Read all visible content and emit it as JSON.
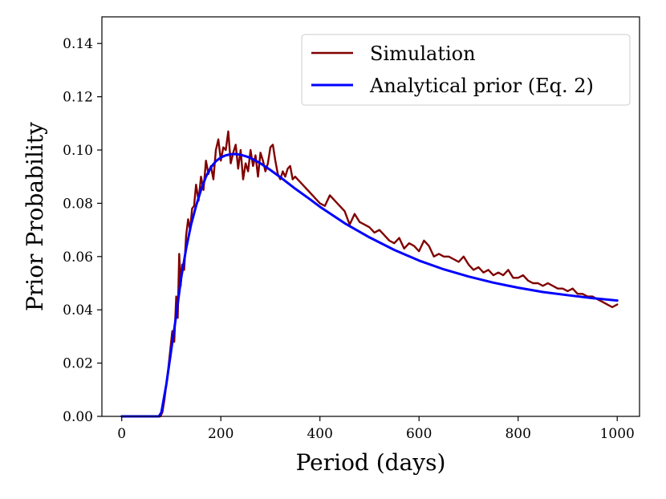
{
  "chart_data": {
    "type": "line",
    "title": "",
    "xlabel": "Period (days)",
    "ylabel": "Prior Probability",
    "xlim": [
      -40,
      1045
    ],
    "ylim": [
      0,
      0.15
    ],
    "xticks": [
      0,
      200,
      400,
      600,
      800,
      1000
    ],
    "xtick_labels": [
      "0",
      "200",
      "400",
      "600",
      "800",
      "1000"
    ],
    "yticks": [
      0.0,
      0.02,
      0.04,
      0.06,
      0.08,
      0.1,
      0.12,
      0.14
    ],
    "ytick_labels": [
      "0.00",
      "0.02",
      "0.04",
      "0.06",
      "0.08",
      "0.10",
      "0.12",
      "0.14"
    ],
    "grid": false,
    "legend_position": "top-right",
    "series": [
      {
        "name": "Simulation",
        "color": "#800000",
        "x": [
          0,
          40,
          78,
          82,
          86,
          90,
          94,
          98,
          102,
          106,
          110,
          113,
          116,
          119,
          122,
          126,
          130,
          134,
          138,
          142,
          146,
          150,
          155,
          160,
          165,
          170,
          175,
          180,
          185,
          190,
          195,
          200,
          205,
          210,
          215,
          220,
          225,
          230,
          235,
          240,
          245,
          250,
          255,
          260,
          265,
          270,
          275,
          280,
          285,
          290,
          295,
          300,
          305,
          310,
          315,
          320,
          325,
          330,
          335,
          340,
          345,
          350,
          360,
          370,
          380,
          390,
          400,
          410,
          420,
          430,
          440,
          450,
          460,
          470,
          480,
          490,
          500,
          510,
          520,
          530,
          540,
          550,
          560,
          570,
          580,
          590,
          600,
          610,
          620,
          630,
          640,
          650,
          660,
          670,
          680,
          690,
          700,
          710,
          720,
          730,
          740,
          750,
          760,
          770,
          780,
          790,
          800,
          810,
          820,
          830,
          840,
          850,
          860,
          870,
          880,
          890,
          900,
          910,
          920,
          930,
          940,
          950,
          960,
          970,
          980,
          990,
          1000
        ],
        "y": [
          0,
          0,
          0,
          0.0015,
          0.006,
          0.012,
          0.018,
          0.025,
          0.032,
          0.028,
          0.045,
          0.037,
          0.061,
          0.049,
          0.057,
          0.055,
          0.068,
          0.074,
          0.07,
          0.078,
          0.079,
          0.087,
          0.081,
          0.09,
          0.085,
          0.096,
          0.091,
          0.094,
          0.089,
          0.1,
          0.104,
          0.096,
          0.101,
          0.1,
          0.107,
          0.095,
          0.099,
          0.102,
          0.093,
          0.1,
          0.089,
          0.095,
          0.092,
          0.1,
          0.094,
          0.098,
          0.09,
          0.099,
          0.096,
          0.092,
          0.095,
          0.101,
          0.102,
          0.096,
          0.091,
          0.089,
          0.092,
          0.09,
          0.093,
          0.094,
          0.089,
          0.09,
          0.088,
          0.086,
          0.084,
          0.082,
          0.08,
          0.079,
          0.083,
          0.081,
          0.079,
          0.077,
          0.072,
          0.076,
          0.073,
          0.072,
          0.071,
          0.069,
          0.07,
          0.068,
          0.066,
          0.065,
          0.067,
          0.063,
          0.065,
          0.064,
          0.062,
          0.066,
          0.064,
          0.06,
          0.061,
          0.06,
          0.06,
          0.059,
          0.058,
          0.06,
          0.057,
          0.055,
          0.056,
          0.054,
          0.055,
          0.053,
          0.054,
          0.053,
          0.055,
          0.052,
          0.052,
          0.053,
          0.051,
          0.05,
          0.05,
          0.049,
          0.05,
          0.049,
          0.048,
          0.048,
          0.047,
          0.048,
          0.046,
          0.046,
          0.045,
          0.045,
          0.044,
          0.043,
          0.042,
          0.041,
          0.042
        ]
      },
      {
        "name": "Analytical prior (Eq. 2)",
        "color": "#0000ff",
        "x": [
          0,
          40,
          75,
          80,
          90,
          100,
          110,
          120,
          130,
          140,
          150,
          160,
          170,
          180,
          190,
          200,
          210,
          220,
          230,
          240,
          250,
          260,
          280,
          300,
          320,
          350,
          380,
          400,
          450,
          500,
          550,
          600,
          650,
          700,
          750,
          800,
          850,
          900,
          950,
          1000
        ],
        "y": [
          0,
          0,
          0,
          0.0015,
          0.012,
          0.025,
          0.038,
          0.052,
          0.063,
          0.072,
          0.079,
          0.085,
          0.09,
          0.0935,
          0.0958,
          0.0972,
          0.098,
          0.0984,
          0.0985,
          0.0982,
          0.0977,
          0.097,
          0.095,
          0.0925,
          0.0898,
          0.0855,
          0.0815,
          0.0787,
          0.0725,
          0.0672,
          0.0625,
          0.0585,
          0.0552,
          0.0525,
          0.0502,
          0.0483,
          0.0467,
          0.0455,
          0.0444,
          0.0435
        ]
      }
    ]
  }
}
